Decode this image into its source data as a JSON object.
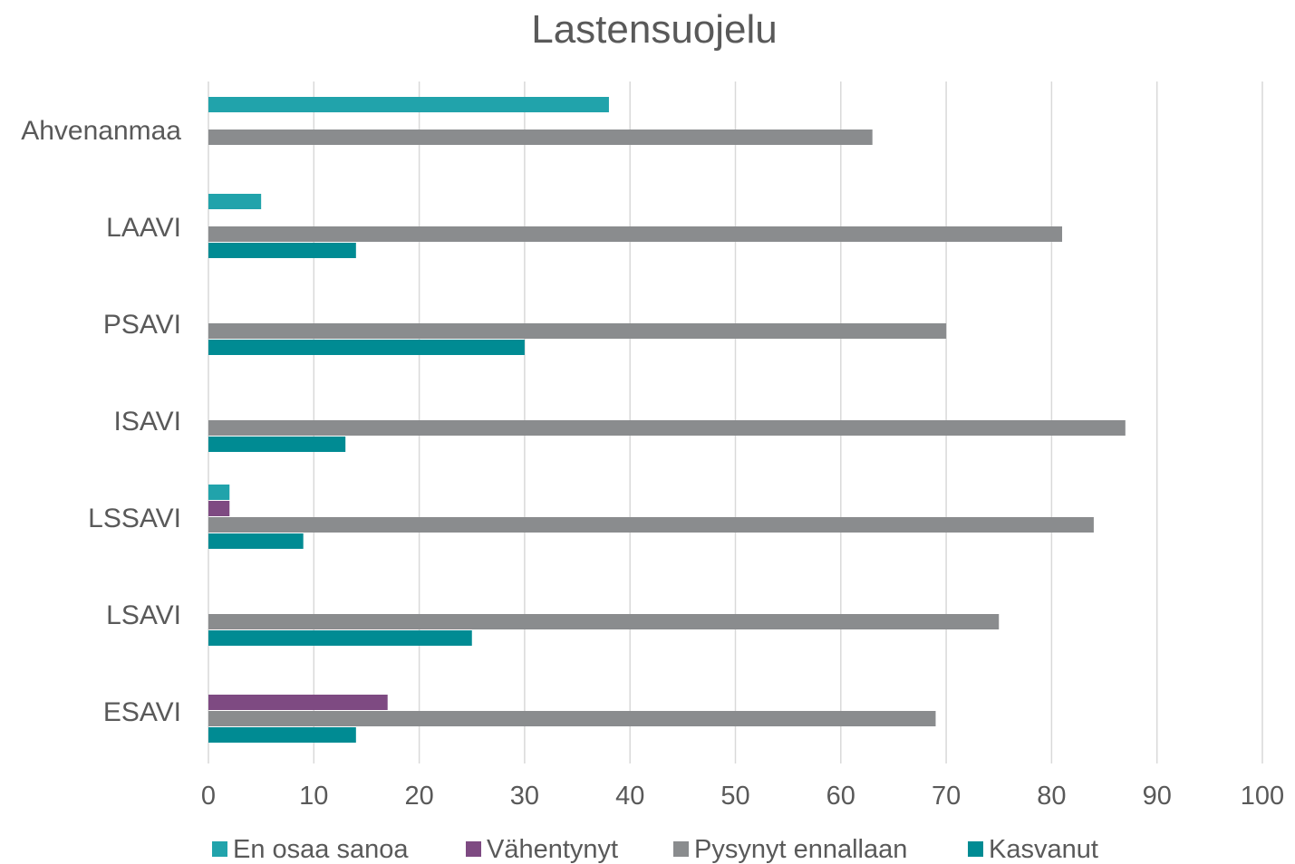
{
  "chart_data": {
    "type": "bar",
    "orientation": "horizontal",
    "title": "Lastensuojelu",
    "xlabel": "",
    "ylabel": "",
    "xlim": [
      0,
      100
    ],
    "x_ticks": [
      "0",
      "10",
      "20",
      "30",
      "40",
      "50",
      "60",
      "70",
      "80",
      "90",
      "100"
    ],
    "grid": true,
    "legend_position": "bottom",
    "categories": [
      "Ahvenanmaa",
      "LAAVI",
      "PSAVI",
      "ISAVI",
      "LSSAVI",
      "LSAVI",
      "ESAVI"
    ],
    "series": [
      {
        "name": "En osaa sanoa",
        "color": "#21a3ab",
        "values": [
          38,
          5,
          0,
          0,
          2,
          0,
          0
        ]
      },
      {
        "name": "Vähentynyt",
        "color": "#7e4a82",
        "values": [
          0,
          0,
          0,
          0,
          2,
          0,
          17
        ]
      },
      {
        "name": "Pysynyt ennallaan",
        "color": "#8a8c8e",
        "values": [
          63,
          81,
          70,
          87,
          84,
          75,
          69
        ]
      },
      {
        "name": "Kasvanut",
        "color": "#008b93",
        "values": [
          0,
          14,
          30,
          13,
          9,
          25,
          14
        ]
      }
    ]
  }
}
